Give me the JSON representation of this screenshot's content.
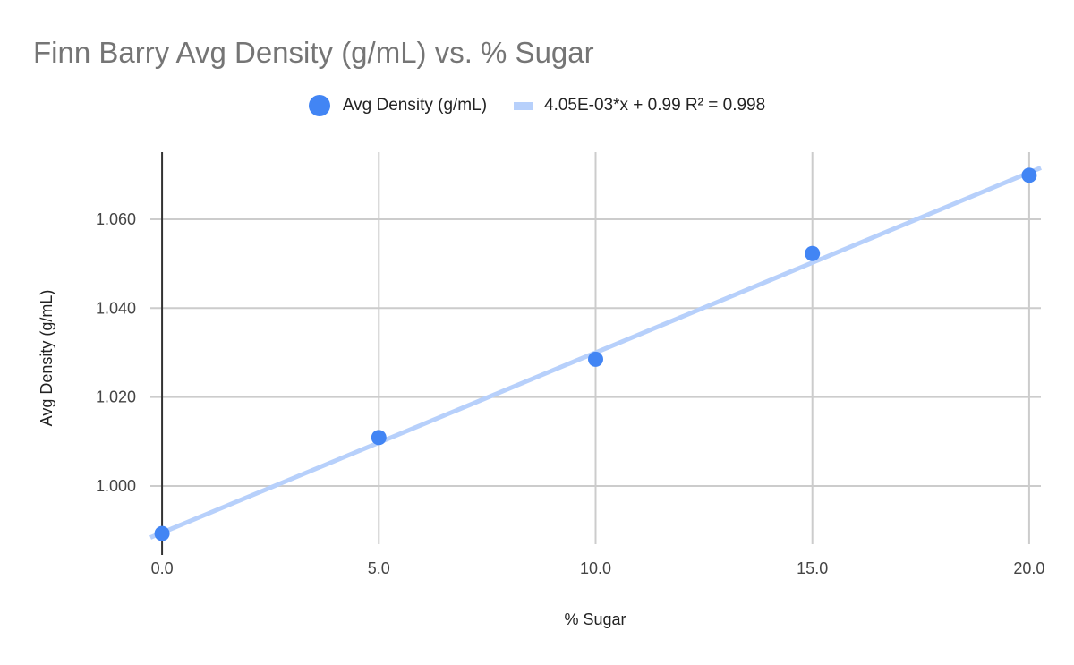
{
  "chart_data": {
    "type": "scatter",
    "title": "Finn Barry Avg Density (g/mL) vs. % Sugar",
    "xlabel": "% Sugar",
    "ylabel": "Avg Density (g/mL)",
    "xlim": [
      -0.27,
      20.27
    ],
    "ylim": [
      0.9869,
      1.0751
    ],
    "grid": true,
    "legend_position": "top",
    "x_ticks": [
      0,
      5,
      10,
      15,
      20
    ],
    "x_tick_labels": [
      "0.0",
      "5.0",
      "10.0",
      "15.0",
      "20.0"
    ],
    "y_ticks": [
      1.0,
      1.02,
      1.04,
      1.06
    ],
    "y_tick_labels": [
      "1.000",
      "1.020",
      "1.040",
      "1.060"
    ],
    "series": [
      {
        "name": "Avg Density (g/mL)",
        "color": "#4285f4",
        "x": [
          0,
          5,
          10,
          15,
          20
        ],
        "y": [
          0.9893,
          1.0109,
          1.0285,
          1.0523,
          1.0699
        ]
      }
    ],
    "trendline": {
      "name": "4.05E-03*x + 0.99 R² = 0.998",
      "color": "#b7d0fb",
      "slope": 0.00405,
      "intercept": 0.9895
    }
  }
}
